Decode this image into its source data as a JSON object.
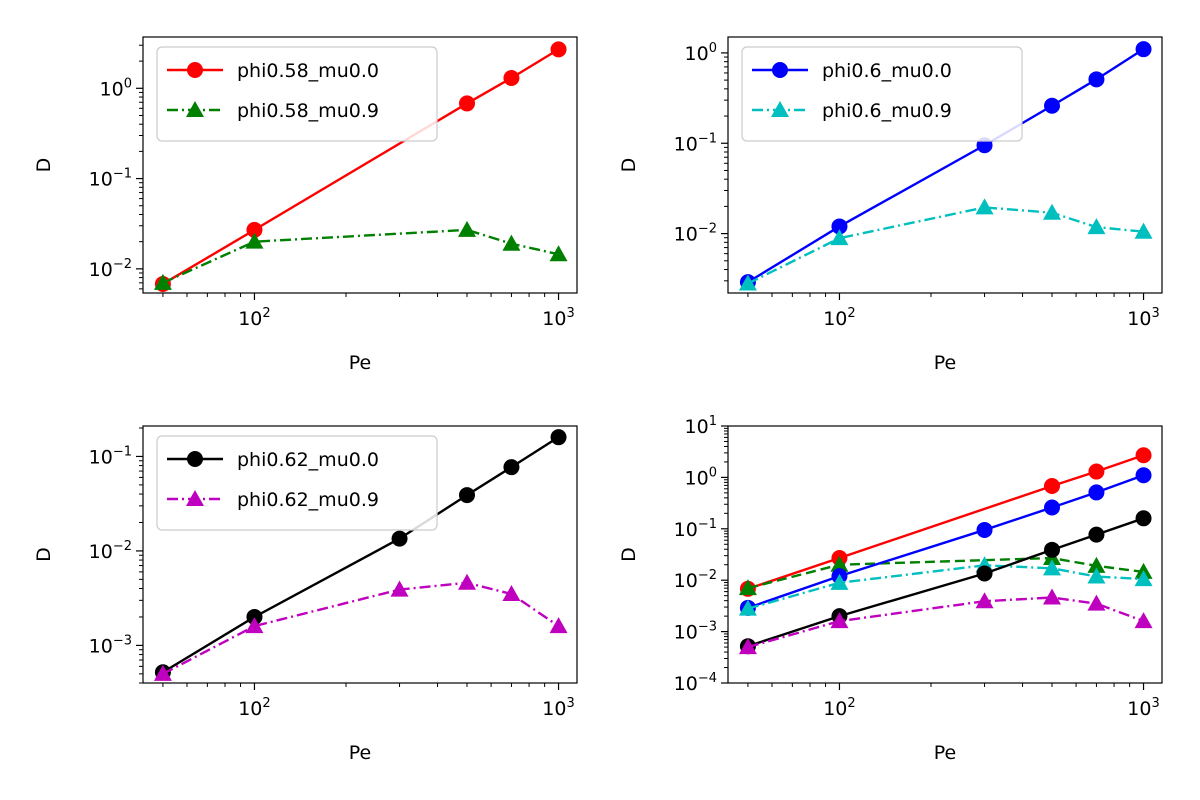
{
  "figure": {
    "background": "#ffffff"
  },
  "chart_data": [
    {
      "type": "line",
      "xlabel": "Pe",
      "ylabel": "D",
      "xscale": "log",
      "yscale": "log",
      "xlim": [
        43,
        1150
      ],
      "ylim": [
        0.0054,
        3.7
      ],
      "xticks": [
        {
          "value": 100,
          "base": "10",
          "exp": "2"
        },
        {
          "value": 1000,
          "base": "10",
          "exp": "3"
        }
      ],
      "yticks": [
        {
          "value": 0.01,
          "base": "10",
          "exp": "−2"
        },
        {
          "value": 0.1,
          "base": "10",
          "exp": "−1"
        },
        {
          "value": 1,
          "base": "10",
          "exp": "0"
        }
      ],
      "legend": "upper-left",
      "series": [
        {
          "name": "phi0.58_mu0.0",
          "color": "#ff0000",
          "marker": "circle",
          "linestyle": "solid",
          "x": [
            50,
            100,
            500,
            700,
            1000
          ],
          "y": [
            0.0068,
            0.027,
            0.68,
            1.3,
            2.7
          ]
        },
        {
          "name": "phi0.58_mu0.9",
          "color": "#008000",
          "marker": "triangle",
          "linestyle": "dashdot",
          "x": [
            50,
            100,
            500,
            700,
            1000
          ],
          "y": [
            0.007,
            0.02,
            0.027,
            0.019,
            0.0145
          ]
        }
      ]
    },
    {
      "type": "line",
      "xlabel": "Pe",
      "ylabel": "D",
      "xscale": "log",
      "yscale": "log",
      "xlim": [
        43,
        1150
      ],
      "ylim": [
        0.0022,
        1.5
      ],
      "xticks": [
        {
          "value": 100,
          "base": "10",
          "exp": "2"
        },
        {
          "value": 1000,
          "base": "10",
          "exp": "3"
        }
      ],
      "yticks": [
        {
          "value": 0.01,
          "base": "10",
          "exp": "−2"
        },
        {
          "value": 0.1,
          "base": "10",
          "exp": "−1"
        },
        {
          "value": 1,
          "base": "10",
          "exp": "0"
        }
      ],
      "legend": "upper-left",
      "series": [
        {
          "name": "phi0.6_mu0.0",
          "color": "#0000ff",
          "marker": "circle",
          "linestyle": "solid",
          "x": [
            50,
            100,
            300,
            500,
            700,
            1000
          ],
          "y": [
            0.0029,
            0.012,
            0.095,
            0.26,
            0.51,
            1.1
          ]
        },
        {
          "name": "phi0.6_mu0.9",
          "color": "#00bfbf",
          "marker": "triangle",
          "linestyle": "dashdot",
          "x": [
            50,
            100,
            300,
            500,
            700,
            1000
          ],
          "y": [
            0.0028,
            0.0089,
            0.0195,
            0.017,
            0.0118,
            0.0105
          ]
        }
      ]
    },
    {
      "type": "line",
      "xlabel": "Pe",
      "ylabel": "D",
      "xscale": "log",
      "yscale": "log",
      "xlim": [
        43,
        1150
      ],
      "ylim": [
        0.0004,
        0.21
      ],
      "xticks": [
        {
          "value": 100,
          "base": "10",
          "exp": "2"
        },
        {
          "value": 1000,
          "base": "10",
          "exp": "3"
        }
      ],
      "yticks": [
        {
          "value": 0.001,
          "base": "10",
          "exp": "−3"
        },
        {
          "value": 0.01,
          "base": "10",
          "exp": "−2"
        },
        {
          "value": 0.1,
          "base": "10",
          "exp": "−1"
        }
      ],
      "legend": "upper-left",
      "series": [
        {
          "name": "phi0.62_mu0.0",
          "color": "#000000",
          "marker": "circle",
          "linestyle": "solid",
          "x": [
            50,
            100,
            300,
            500,
            700,
            1000
          ],
          "y": [
            0.00052,
            0.002,
            0.0135,
            0.039,
            0.077,
            0.16
          ]
        },
        {
          "name": "phi0.62_mu0.9",
          "color": "#bf00bf",
          "marker": "triangle",
          "linestyle": "dashdot",
          "x": [
            50,
            100,
            300,
            500,
            700,
            1000
          ],
          "y": [
            0.0005,
            0.0016,
            0.0039,
            0.0046,
            0.0035,
            0.0016
          ]
        }
      ]
    },
    {
      "type": "line",
      "xlabel": "Pe",
      "ylabel": "D",
      "xscale": "log",
      "yscale": "log",
      "xlim": [
        43,
        1150
      ],
      "ylim": [
        0.0001,
        10
      ],
      "xticks": [
        {
          "value": 100,
          "base": "10",
          "exp": "2"
        },
        {
          "value": 1000,
          "base": "10",
          "exp": "3"
        }
      ],
      "yticks": [
        {
          "value": 0.0001,
          "base": "10",
          "exp": "−4"
        },
        {
          "value": 0.001,
          "base": "10",
          "exp": "−3"
        },
        {
          "value": 0.01,
          "base": "10",
          "exp": "−2"
        },
        {
          "value": 0.1,
          "base": "10",
          "exp": "−1"
        },
        {
          "value": 1,
          "base": "10",
          "exp": "0"
        },
        {
          "value": 10,
          "base": "10",
          "exp": "1"
        }
      ],
      "legend": "none",
      "series": [
        {
          "color": "#ff0000",
          "marker": "circle",
          "linestyle": "solid",
          "x": [
            50,
            100,
            500,
            700,
            1000
          ],
          "y": [
            0.0068,
            0.027,
            0.68,
            1.3,
            2.7
          ]
        },
        {
          "color": "#008000",
          "marker": "triangle",
          "linestyle": "dashed",
          "x": [
            50,
            100,
            500,
            700,
            1000
          ],
          "y": [
            0.007,
            0.02,
            0.027,
            0.019,
            0.0145
          ]
        },
        {
          "color": "#0000ff",
          "marker": "circle",
          "linestyle": "solid",
          "x": [
            50,
            100,
            300,
            500,
            700,
            1000
          ],
          "y": [
            0.0029,
            0.012,
            0.095,
            0.26,
            0.51,
            1.1
          ]
        },
        {
          "color": "#00bfbf",
          "marker": "triangle",
          "linestyle": "dashdot",
          "x": [
            50,
            100,
            300,
            500,
            700,
            1000
          ],
          "y": [
            0.0028,
            0.0089,
            0.0195,
            0.017,
            0.0118,
            0.0105
          ]
        },
        {
          "color": "#000000",
          "marker": "circle",
          "linestyle": "solid",
          "x": [
            50,
            100,
            300,
            500,
            700,
            1000
          ],
          "y": [
            0.00052,
            0.002,
            0.0135,
            0.039,
            0.077,
            0.16
          ]
        },
        {
          "color": "#bf00bf",
          "marker": "triangle",
          "linestyle": "dashdot",
          "x": [
            50,
            100,
            300,
            500,
            700,
            1000
          ],
          "y": [
            0.0005,
            0.0016,
            0.0039,
            0.0046,
            0.0035,
            0.0016
          ]
        }
      ]
    }
  ]
}
